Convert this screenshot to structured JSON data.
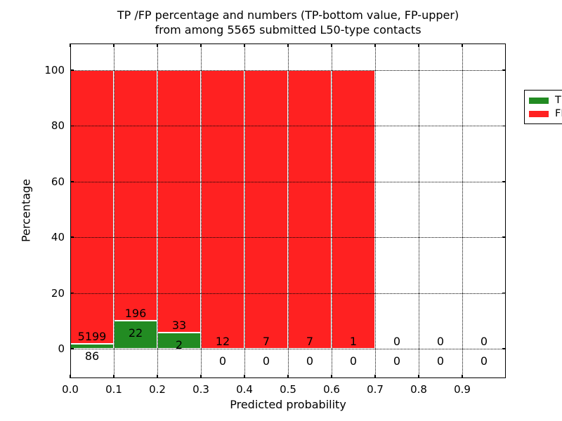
{
  "chart_data": {
    "type": "bar",
    "stacked": true,
    "title_line1": "TP /FP percentage and numbers (TP-bottom value, FP-upper)",
    "title_line2": "from among 5565 submitted L50-type contacts",
    "xlabel": "Predicted probability",
    "ylabel": "Percentage",
    "total_contacts": 5565,
    "bin_width": 0.1,
    "bin_starts": [
      0.0,
      0.1,
      0.2,
      0.3,
      0.4,
      0.5,
      0.6,
      0.7,
      0.8,
      0.9
    ],
    "series": [
      {
        "name": "TP",
        "color": "#228B22",
        "counts": [
          86,
          22,
          2,
          0,
          0,
          0,
          0,
          0,
          0,
          0
        ]
      },
      {
        "name": "FP",
        "color": "#FF2121",
        "counts": [
          5199,
          196,
          33,
          12,
          7,
          7,
          1,
          0,
          0,
          0
        ]
      }
    ],
    "tp_percent_of_bin": [
      1.63,
      10.09,
      5.71,
      0,
      0,
      0,
      0,
      null,
      null,
      null
    ],
    "bar_total_percent": 100,
    "x_tick_labels": [
      "0.0",
      "0.1",
      "0.2",
      "0.3",
      "0.4",
      "0.5",
      "0.6",
      "0.7",
      "0.8",
      "0.9"
    ],
    "x_tick_values": [
      0.0,
      0.1,
      0.2,
      0.3,
      0.4,
      0.5,
      0.6,
      0.7,
      0.8,
      0.9
    ],
    "y_tick_labels": [
      "0",
      "20",
      "40",
      "60",
      "80",
      "100"
    ],
    "y_tick_values": [
      0,
      20,
      40,
      60,
      80,
      100
    ],
    "x_grid_values": [
      0.1,
      0.2,
      0.3,
      0.4,
      0.5,
      0.6,
      0.7,
      0.8,
      0.9
    ],
    "xlim": [
      0.0,
      1.0
    ],
    "ylim": [
      -10.6,
      109.6
    ],
    "grid": true,
    "grid_style": "dotted",
    "background_color": "#ffffff",
    "bar_edge_color": "#ffffff",
    "legend": {
      "position": "upper-right",
      "entries": [
        {
          "label": "TP",
          "color": "#228B22"
        },
        {
          "label": "FP",
          "color": "#FF2121"
        }
      ]
    }
  }
}
